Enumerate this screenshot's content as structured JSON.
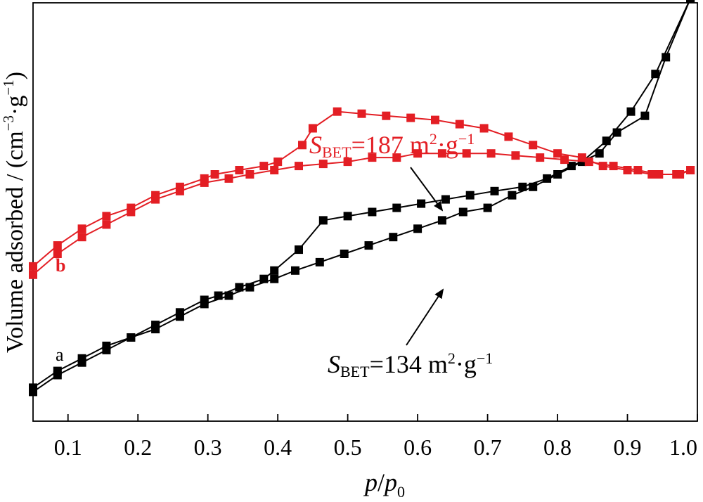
{
  "chart_data": {
    "type": "line",
    "xlabel": {
      "main": "p",
      "slash": "/",
      "sub_main": "p",
      "sub": "0"
    },
    "ylabel": {
      "text": "Volume adsorbed / (cm",
      "sup1": "−3",
      "mid": "·g",
      "sup2": "−1",
      "end": ")"
    },
    "xlim": [
      0.05,
      1.0
    ],
    "ylim": [
      0,
      100
    ],
    "x_ticks": [
      0.1,
      0.2,
      0.3,
      0.4,
      0.5,
      0.6,
      0.7,
      0.8,
      0.9,
      1.0
    ],
    "x_tick_labels": [
      "0.1",
      "0.2",
      "0.3",
      "0.4",
      "0.5",
      "0.6",
      "0.7",
      "0.8",
      "0.9",
      "1.0"
    ],
    "y_tick_labels_shown": false,
    "grid": false,
    "legend": "none",
    "series": [
      {
        "name": "a",
        "color": "#000000",
        "adsorption": {
          "x": [
            0.05,
            0.085,
            0.12,
            0.155,
            0.19,
            0.225,
            0.26,
            0.295,
            0.33,
            0.36,
            0.395,
            0.425,
            0.46,
            0.495,
            0.53,
            0.565,
            0.6,
            0.635,
            0.665,
            0.7,
            0.735,
            0.765,
            0.8,
            0.835,
            0.87,
            0.905,
            0.94,
            0.99
          ],
          "y": [
            7,
            11,
            14,
            17,
            20,
            22,
            25,
            28,
            30,
            32,
            34,
            36,
            38,
            40,
            42,
            44,
            46,
            48,
            50,
            51,
            54,
            56,
            59,
            62,
            67,
            74,
            83,
            101
          ]
        },
        "desorption": {
          "x": [
            0.05,
            0.085,
            0.12,
            0.155,
            0.19,
            0.225,
            0.26,
            0.295,
            0.315,
            0.345,
            0.38,
            0.395,
            0.43,
            0.465,
            0.5,
            0.535,
            0.57,
            0.605,
            0.64,
            0.675,
            0.71,
            0.75,
            0.785,
            0.82,
            0.86,
            0.885,
            0.925,
            0.955,
            0.99
          ],
          "y": [
            8,
            12,
            15,
            18,
            20,
            23,
            26,
            29,
            30,
            32,
            34,
            36,
            41,
            48,
            49,
            50,
            51,
            52,
            53,
            54,
            55,
            56,
            58,
            61,
            64,
            69,
            73,
            87,
            101
          ]
        }
      },
      {
        "name": "b",
        "color": "#e31e24",
        "adsorption": {
          "x": [
            0.05,
            0.085,
            0.12,
            0.155,
            0.19,
            0.225,
            0.26,
            0.295,
            0.33,
            0.36,
            0.395,
            0.43,
            0.465,
            0.5,
            0.535,
            0.57,
            0.6,
            0.635,
            0.67,
            0.705,
            0.74,
            0.775,
            0.81,
            0.845,
            0.88,
            0.915,
            0.945,
            0.975,
            0.99
          ],
          "y": [
            35,
            40,
            44,
            47,
            50,
            53,
            55,
            57,
            58,
            59,
            60,
            61,
            61.5,
            62,
            63,
            63,
            64,
            64,
            64,
            64,
            63.5,
            63,
            62.5,
            62,
            61,
            60,
            59,
            59,
            60
          ]
        },
        "desorption": {
          "x": [
            0.05,
            0.085,
            0.12,
            0.155,
            0.19,
            0.225,
            0.26,
            0.295,
            0.31,
            0.345,
            0.38,
            0.4,
            0.435,
            0.45,
            0.485,
            0.52,
            0.555,
            0.59,
            0.625,
            0.66,
            0.695,
            0.73,
            0.765,
            0.8,
            0.835,
            0.865,
            0.9,
            0.935,
            0.97,
            0.99
          ],
          "y": [
            37,
            42,
            46,
            49,
            51,
            54,
            56,
            58,
            59,
            60,
            61,
            62,
            66,
            70,
            74,
            73.5,
            73,
            72.5,
            72,
            71,
            70,
            68,
            66,
            64,
            63,
            61,
            60,
            59,
            59,
            60
          ]
        }
      }
    ],
    "annotations": [
      {
        "series": "b",
        "S": "S",
        "sub": "BET",
        "value": "=187 m",
        "sup": "2",
        "unit": "·g",
        "sup2": "−1",
        "color": "#e31e24"
      },
      {
        "series": "a",
        "S": "S",
        "sub": "BET",
        "value": "=134 m",
        "sup": "2",
        "unit": "·g",
        "sup2": "−1",
        "color": "#000000"
      }
    ]
  }
}
